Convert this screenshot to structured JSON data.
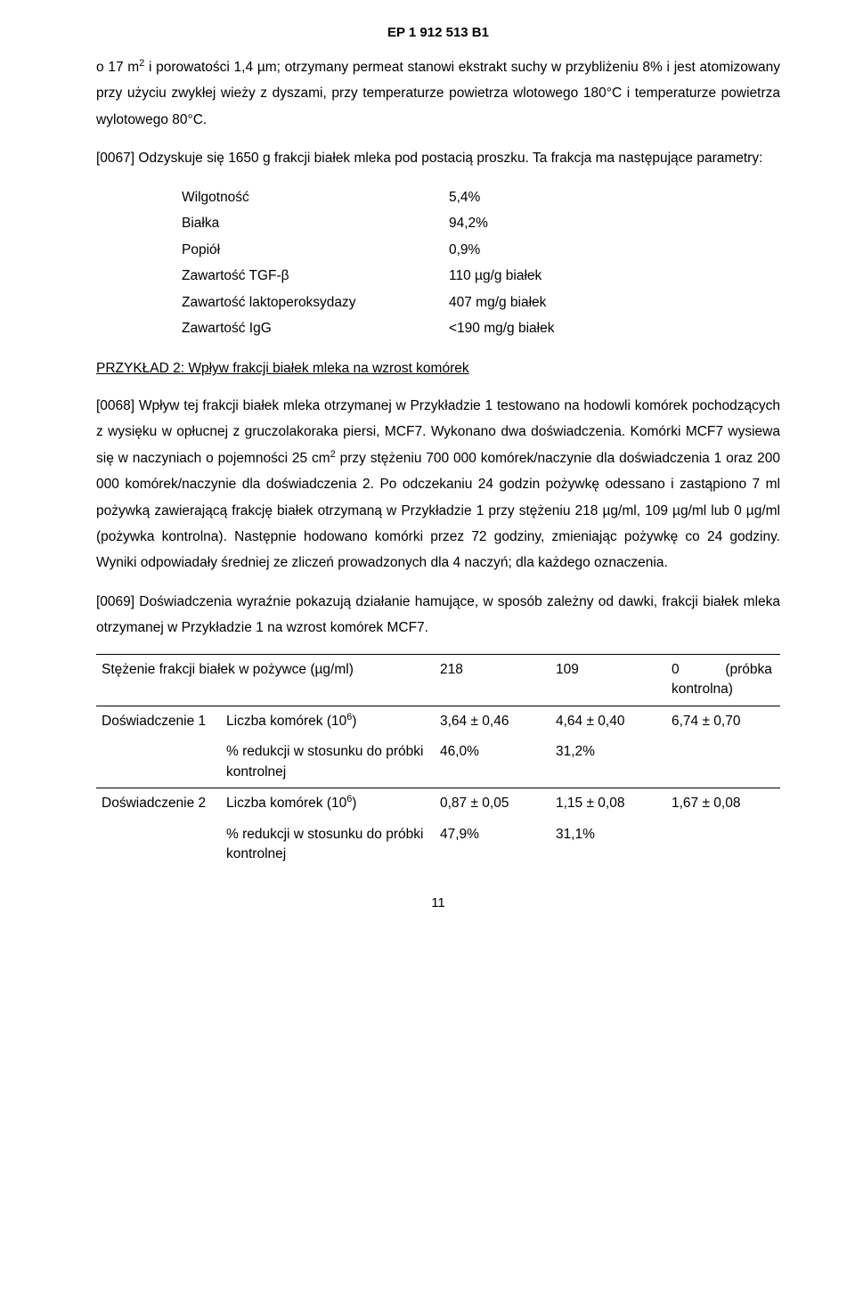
{
  "header": {
    "doc_number": "EP 1 912 513 B1"
  },
  "body": {
    "p1_prefix": "o 17 m",
    "p1_sup": "2",
    "p1_rest": " i porowatości 1,4 µm; otrzymany permeat stanowi ekstrakt suchy w przybliżeniu 8% i jest atomizowany przy użyciu zwykłej wieży z dyszami, przy temperaturze powietrza wlotowego 180°C i temperaturze powietrza wylotowego 80°C.",
    "p2": "[0067] Odzyskuje się 1650 g frakcji białek mleka pod postacią proszku. Ta frakcja ma następujące parametry:"
  },
  "params": {
    "rows": [
      {
        "label": "Wilgotność",
        "value": "5,4%"
      },
      {
        "label": "Białka",
        "value": "94,2%"
      },
      {
        "label": "Popiół",
        "value": "0,9%"
      },
      {
        "label": "Zawartość TGF-β",
        "value": "110 µg/g białek"
      },
      {
        "label": "Zawartość laktoperoksydazy",
        "value": "407 mg/g białek"
      },
      {
        "label": "Zawartość IgG",
        "value": "<190 mg/g białek"
      }
    ]
  },
  "example": {
    "heading": "PRZYKŁAD 2: Wpływ frakcji białek mleka na wzrost komórek",
    "p3a": "[0068] Wpływ tej frakcji białek mleka otrzymanej w Przykładzie 1 testowano na hodowli komórek pochodzących z wysięku w opłucnej z gruczolakoraka piersi, MCF7. Wykonano dwa doświadczenia. Komórki MCF7 wysiewa się w naczyniach o pojemności 25 cm",
    "p3_sup": "2",
    "p3b": " przy stężeniu 700 000 komórek/naczynie dla doświadczenia 1 oraz 200 000 komórek/naczynie dla doświadczenia 2. Po odczekaniu 24 godzin pożywkę odessano i zastąpiono 7 ml pożywką zawierającą frakcję białek otrzymaną w Przykładzie 1 przy stężeniu 218 µg/ml, 109 µg/ml lub 0 µg/ml (pożywka kontrolna). Następnie hodowano komórki przez 72 godziny, zmieniając pożywkę co 24 godziny. Wyniki odpowiadały średniej ze zliczeń prowadzonych dla 4 naczyń; dla każdego oznaczenia.",
    "p4": "[0069] Doświadczenia wyraźnie pokazują działanie hamujące, w sposób zależny od dawki, frakcji białek mleka otrzymanej w Przykładzie 1 na wzrost komórek MCF7."
  },
  "table": {
    "header": {
      "title": "Stężenie frakcji białek w pożywce (µg/ml)",
      "c218": "218",
      "c109": "109",
      "c0a": "0",
      "c0b": "(próbka kontrolna)"
    },
    "r1": {
      "exp": "Doświadczenie 1",
      "m1a": "Liczba komórek (10",
      "m1sup": "6",
      "m1b": ")",
      "v1": "3,64 ± 0,46",
      "v2": "4,64 ± 0,40",
      "v3": "6,74 ± 0,70",
      "m2": "% redukcji w stosunku do próbki kontrolnej",
      "r1": "46,0%",
      "r2": "31,2%"
    },
    "r2": {
      "exp": "Doświadczenie 2",
      "m1a": "Liczba komórek (10",
      "m1sup": "6",
      "m1b": ")",
      "v1": "0,87 ± 0,05",
      "v2": "1,15 ± 0,08",
      "v3": "1,67 ± 0,08",
      "m2": "% redukcji w stosunku do próbki kontrolnej",
      "r1": "47,9%",
      "r2": "31,1%"
    }
  },
  "footer": {
    "page_number": "11"
  }
}
